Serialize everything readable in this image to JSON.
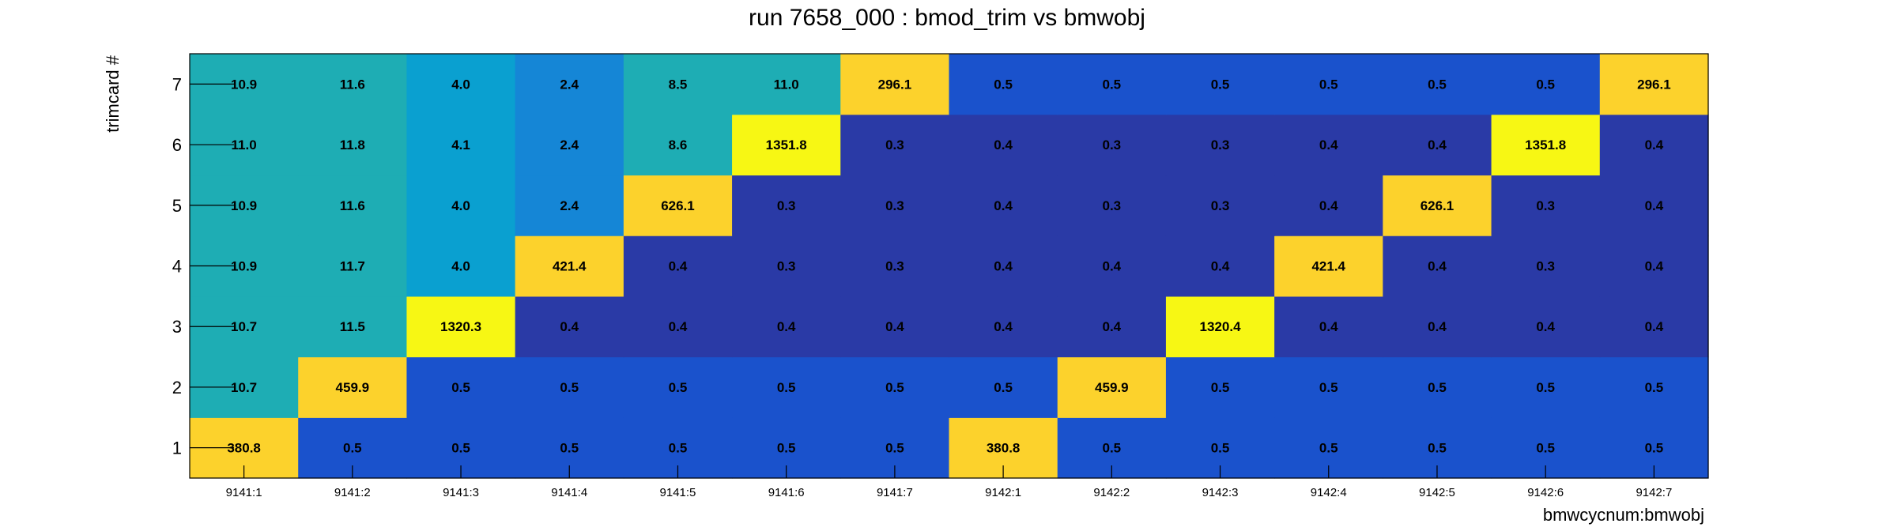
{
  "chart_data": {
    "type": "heatmap",
    "title": "run 7658_000 : bmod_trim vs bmwobj",
    "xlabel": "bmwcycnum:bmwobj",
    "ylabel": "trimcard #",
    "x_categories": [
      "9141:1",
      "9141:2",
      "9141:3",
      "9141:4",
      "9141:5",
      "9141:6",
      "9141:7",
      "9142:1",
      "9142:2",
      "9142:3",
      "9142:4",
      "9142:5",
      "9142:6",
      "9142:7"
    ],
    "y_categories": [
      "1",
      "2",
      "3",
      "4",
      "5",
      "6",
      "7"
    ],
    "values": [
      [
        380.8,
        0.5,
        0.5,
        0.5,
        0.5,
        0.5,
        0.5,
        380.8,
        0.5,
        0.5,
        0.5,
        0.5,
        0.5,
        0.5
      ],
      [
        10.7,
        459.9,
        0.5,
        0.5,
        0.5,
        0.5,
        0.5,
        0.5,
        459.9,
        0.5,
        0.5,
        0.5,
        0.5,
        0.5
      ],
      [
        10.7,
        11.5,
        1320.3,
        0.4,
        0.4,
        0.4,
        0.4,
        0.4,
        0.4,
        1320.4,
        0.4,
        0.4,
        0.4,
        0.4
      ],
      [
        10.9,
        11.7,
        4.0,
        421.4,
        0.4,
        0.3,
        0.3,
        0.4,
        0.4,
        0.4,
        421.4,
        0.4,
        0.3,
        0.4
      ],
      [
        10.9,
        11.6,
        4.0,
        2.4,
        626.1,
        0.3,
        0.3,
        0.4,
        0.3,
        0.3,
        0.4,
        626.1,
        0.3,
        0.4
      ],
      [
        11.0,
        11.8,
        4.1,
        2.4,
        8.6,
        1351.8,
        0.3,
        0.4,
        0.3,
        0.3,
        0.4,
        0.4,
        1351.8,
        0.4
      ],
      [
        10.9,
        11.6,
        4.0,
        2.4,
        8.5,
        11.0,
        296.1,
        0.5,
        0.5,
        0.5,
        0.5,
        0.5,
        0.5,
        296.1
      ]
    ],
    "colors": {
      "c0_3": "#2a3aa6",
      "c0_4": "#2a3aa6",
      "c0_5": "#1a52cc",
      "c2_4": "#1586d6",
      "c4_0": "#0aa0d0",
      "c8_6": "#1eadb4",
      "c10_12": "#1eadb4",
      "hot": "#fcd22c",
      "hottest": "#f7f714"
    }
  }
}
